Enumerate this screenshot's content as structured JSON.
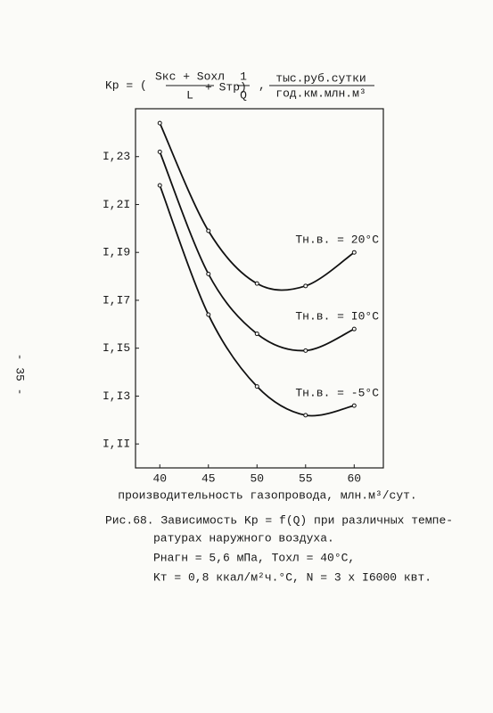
{
  "header": {
    "lhs": "Kр = (",
    "num1": "Sкс + Sохл",
    "den1": "L",
    "mid": "+ Sтр)",
    "num2": "1",
    "den2": "Q",
    "comma": ",",
    "units_num": "тыс.руб.сутки",
    "units_den": "год.км.млн.м³"
  },
  "page_number": "- 35 -",
  "chart_data": {
    "type": "line",
    "x_label": "производительность газопровода, млн.м³/сут.",
    "xlim": [
      37.5,
      63
    ],
    "xticks": [
      40,
      45,
      50,
      55,
      60
    ],
    "ylim": [
      1.1,
      1.25
    ],
    "yticks": [
      {
        "value": 1.11,
        "label": "I,II"
      },
      {
        "value": 1.13,
        "label": "I,I3"
      },
      {
        "value": 1.15,
        "label": "I,I5"
      },
      {
        "value": 1.17,
        "label": "I,I7"
      },
      {
        "value": 1.19,
        "label": "I,I9"
      },
      {
        "value": 1.21,
        "label": "I,2I"
      },
      {
        "value": 1.23,
        "label": "I,23"
      }
    ],
    "x": [
      40,
      45,
      50,
      55,
      60
    ],
    "series": [
      {
        "name": "Tн.в. = 20°C",
        "color": "#111111",
        "values": [
          1.244,
          1.199,
          1.177,
          1.176,
          1.19
        ]
      },
      {
        "name": "Tн.в. = I0°C",
        "color": "#111111",
        "values": [
          1.232,
          1.181,
          1.156,
          1.149,
          1.158
        ]
      },
      {
        "name": "Tн.в. = -5°C",
        "color": "#111111",
        "values": [
          1.218,
          1.164,
          1.134,
          1.122,
          1.126
        ]
      }
    ]
  },
  "caption": [
    "Рис.68. Зависимость Kр = f(Q) при различных темпе-",
    "ратурах наружного воздуха.",
    "Pнагн = 5,6 мПа,   Tохл = 40°C,",
    "Kт = 0,8 ккал/м²ч.°C,  N = 3 x I6000 квт."
  ]
}
